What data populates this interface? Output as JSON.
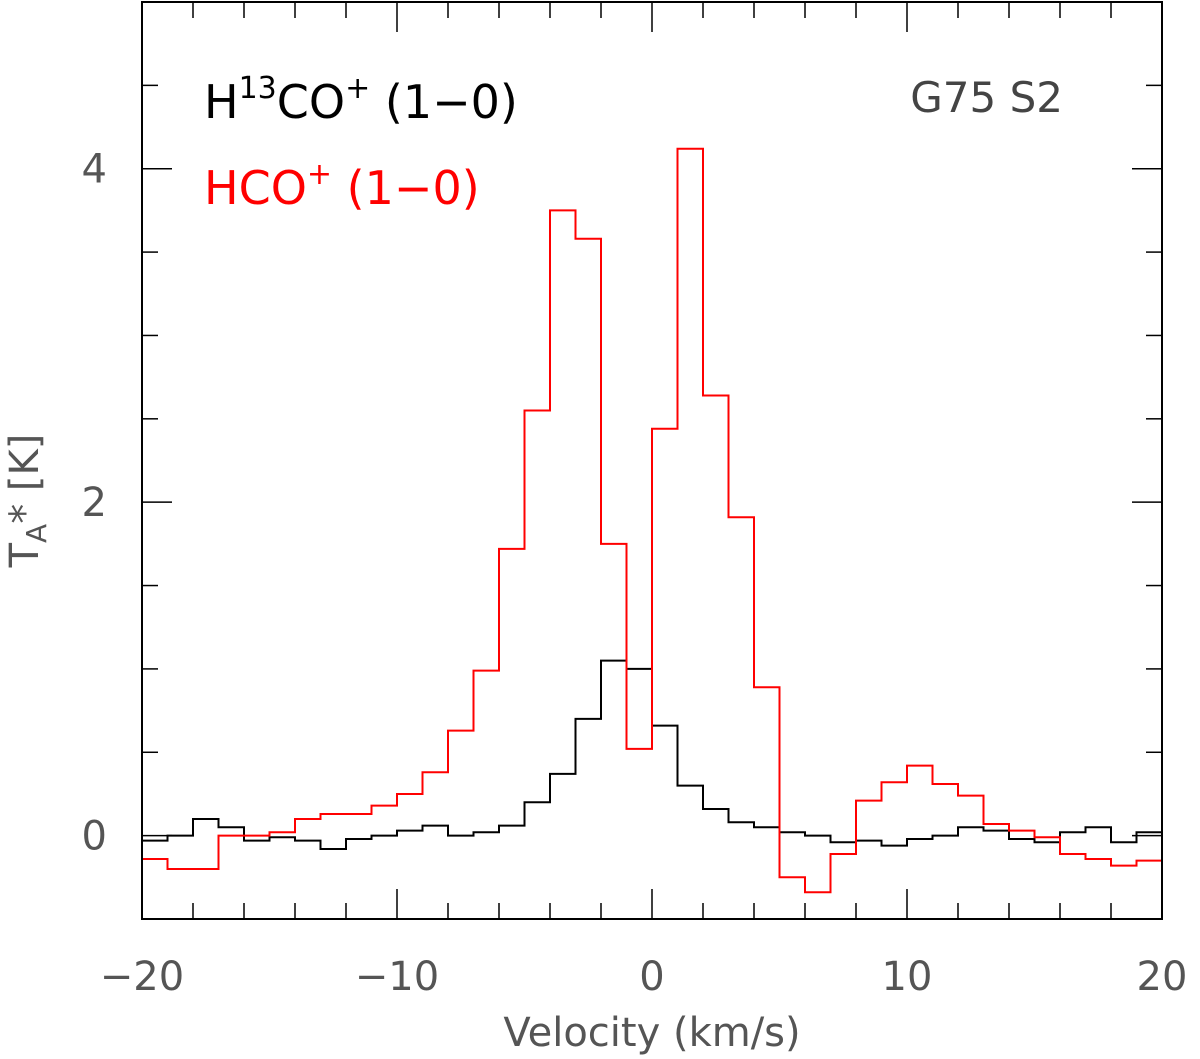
{
  "chart_data": {
    "type": "line",
    "drawstyle": "steps-mid",
    "xlabel": "Velocity (km/s)",
    "ylabel_main": "T",
    "ylabel_sub": "A",
    "ylabel_rest": "* [K]",
    "xlim": [
      -20,
      20
    ],
    "ylim": [
      -0.5,
      5
    ],
    "x_tick_labels": [
      "−20",
      "−10",
      "0",
      "10",
      "20"
    ],
    "x_tick_values": [
      -20,
      -10,
      0,
      10,
      20
    ],
    "y_tick_labels": [
      "0",
      "2",
      "4"
    ],
    "y_tick_values": [
      0,
      2,
      4
    ],
    "annotation": "G75 S2",
    "series": [
      {
        "name": "H13CO+ (1-0)",
        "legend_base": "H",
        "legend_sup": "13",
        "legend_mid": "CO",
        "legend_sup2": "+",
        "legend_tail": " (1−0)",
        "color": "#000000",
        "x": [
          -19.5,
          -18.5,
          -17.5,
          -16.5,
          -15.5,
          -14.5,
          -13.5,
          -12.5,
          -11.5,
          -10.5,
          -9.5,
          -8.5,
          -7.5,
          -6.5,
          -5.5,
          -4.5,
          -3.5,
          -2.5,
          -1.5,
          -0.5,
          0.5,
          1.5,
          2.5,
          3.5,
          4.5,
          5.5,
          6.5,
          7.5,
          8.5,
          9.5,
          10.5,
          11.5,
          12.5,
          13.5,
          14.5,
          15.5,
          16.5,
          17.5,
          18.5,
          19.5
        ],
        "values": [
          -0.03,
          0.0,
          0.1,
          0.05,
          -0.03,
          -0.01,
          -0.03,
          -0.08,
          -0.02,
          0.0,
          0.03,
          0.06,
          0.0,
          0.02,
          0.06,
          0.2,
          0.37,
          0.7,
          1.05,
          1.0,
          0.66,
          0.3,
          0.16,
          0.08,
          0.05,
          0.02,
          0.0,
          -0.04,
          -0.03,
          -0.06,
          -0.02,
          0.0,
          0.05,
          0.03,
          -0.02,
          -0.04,
          0.02,
          0.05,
          -0.04,
          0.02
        ]
      },
      {
        "name": "HCO+ (1-0)",
        "legend_base": "HCO",
        "legend_sup": "+",
        "legend_tail": " (1−0)",
        "color": "#ff0000",
        "x": [
          -19.5,
          -18.5,
          -17.5,
          -16.5,
          -15.5,
          -14.5,
          -13.5,
          -12.5,
          -11.5,
          -10.5,
          -9.5,
          -8.5,
          -7.5,
          -6.5,
          -5.5,
          -4.5,
          -3.5,
          -2.5,
          -1.5,
          -0.5,
          0.5,
          1.5,
          2.5,
          3.5,
          4.5,
          5.5,
          6.5,
          7.5,
          8.5,
          9.5,
          10.5,
          11.5,
          12.5,
          13.5,
          14.5,
          15.5,
          16.5,
          17.5,
          18.5,
          19.5
        ],
        "values": [
          -0.14,
          -0.2,
          -0.2,
          0.0,
          0.0,
          0.02,
          0.1,
          0.13,
          0.13,
          0.18,
          0.25,
          0.38,
          0.63,
          0.99,
          1.72,
          2.55,
          3.75,
          3.58,
          1.75,
          0.52,
          2.44,
          4.12,
          2.64,
          1.91,
          0.89,
          -0.25,
          -0.34,
          -0.11,
          0.21,
          0.32,
          0.42,
          0.31,
          0.24,
          0.07,
          0.03,
          -0.01,
          -0.11,
          -0.14,
          -0.18,
          -0.15
        ]
      }
    ]
  }
}
